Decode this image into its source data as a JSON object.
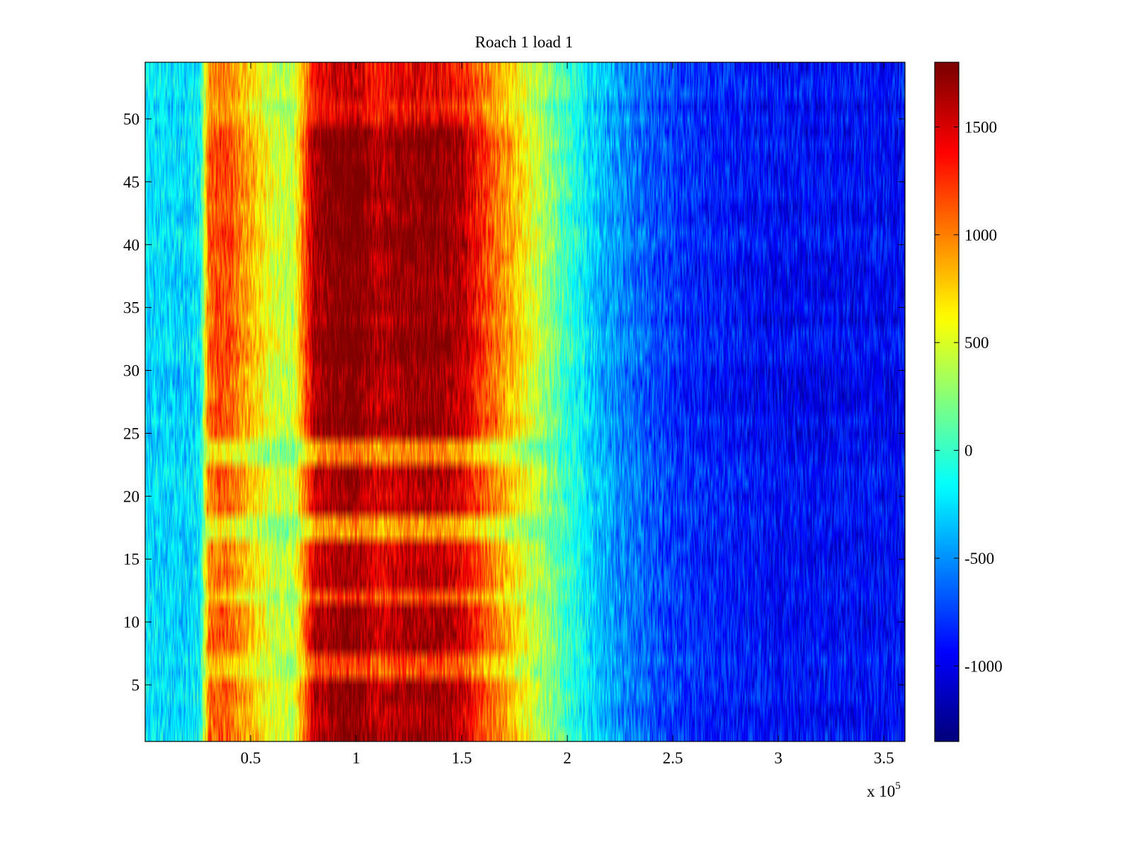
{
  "chart_data": {
    "type": "heatmap",
    "title": "Roach 1 load 1",
    "xlabel": "",
    "ylabel": "",
    "x_multiplier_label": "x 10",
    "x_multiplier_exponent": "5",
    "xlim": [
      0,
      3.6
    ],
    "ylim": [
      0.5,
      54.5
    ],
    "x_ticks": [
      0.5,
      1,
      1.5,
      2,
      2.5,
      3,
      3.5
    ],
    "x_tick_labels": [
      "0.5",
      "1",
      "1.5",
      "2",
      "2.5",
      "3",
      "3.5"
    ],
    "y_ticks": [
      5,
      10,
      15,
      20,
      25,
      30,
      35,
      40,
      45,
      50
    ],
    "y_tick_labels": [
      "5",
      "10",
      "15",
      "20",
      "25",
      "30",
      "35",
      "40",
      "45",
      "50"
    ],
    "rows": 54,
    "colormap": "jet",
    "clim": [
      -1350,
      1800
    ],
    "colorbar_ticks": [
      -1000,
      -500,
      0,
      500,
      1000,
      1500
    ],
    "colorbar_tick_labels": [
      "-1000",
      "-500",
      "0",
      "500",
      "1000",
      "1500"
    ],
    "mean_profile": {
      "x": [
        0,
        0.2,
        0.26,
        0.3,
        0.35,
        0.4,
        0.5,
        0.6,
        0.7,
        0.8,
        0.9,
        1.0,
        1.1,
        1.2,
        1.3,
        1.4,
        1.5,
        1.6,
        1.7,
        1.8,
        1.9,
        2.0,
        2.1,
        2.2,
        2.4,
        2.6,
        2.8,
        3.0,
        3.2,
        3.4,
        3.6
      ],
      "values": [
        -250,
        -300,
        -200,
        1050,
        1150,
        1100,
        800,
        500,
        400,
        1600,
        1750,
        1800,
        1550,
        1650,
        1700,
        1700,
        1550,
        1200,
        900,
        600,
        300,
        0,
        -250,
        -450,
        -700,
        -850,
        -900,
        -950,
        -950,
        -950,
        -950
      ]
    },
    "strong_rows": [
      {
        "from": 1,
        "to": 5,
        "strength": 1.0
      },
      {
        "from": 6,
        "to": 7,
        "strength": 0.7
      },
      {
        "from": 8,
        "to": 11,
        "strength": 1.0
      },
      {
        "from": 12,
        "to": 12,
        "strength": 0.7
      },
      {
        "from": 13,
        "to": 16,
        "strength": 0.95
      },
      {
        "from": 17,
        "to": 18,
        "strength": 0.55
      },
      {
        "from": 19,
        "to": 22,
        "strength": 0.95
      },
      {
        "from": 23,
        "to": 24,
        "strength": 0.6
      },
      {
        "from": 25,
        "to": 49,
        "strength": 1.05
      },
      {
        "from": 50,
        "to": 54,
        "strength": 0.85
      }
    ]
  }
}
